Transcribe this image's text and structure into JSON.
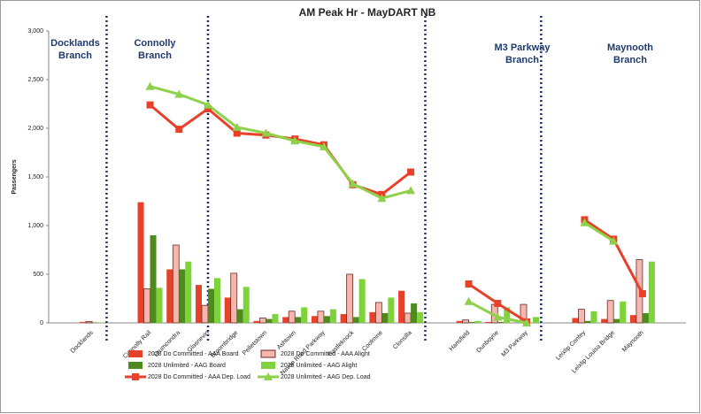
{
  "chart_data": {
    "type": "bar",
    "title": "AM Peak Hr - MayDART NB",
    "y_label": "Passengers",
    "categories": [
      null,
      "Docklands",
      null,
      "Connolly Rail",
      "Drumcondra",
      "Glasnevin",
      "Broombridge",
      "Pelletstown",
      "Ashtown",
      "Navan Road Parkway",
      "Castleknock",
      "Coolmine",
      "Clonsilla",
      null,
      "Hansfield",
      "Dunboyne",
      "M3 Parkway",
      null,
      "Leixlip Confey",
      "Leixlip Louisa Bridge",
      "Maynooth",
      null
    ],
    "series": [
      {
        "name": "2028 Do Committed - AAA Board",
        "type": "bar",
        "color": "#e8412a",
        "values": [
          null,
          10,
          null,
          1240,
          550,
          390,
          260,
          20,
          60,
          70,
          90,
          110,
          330,
          null,
          20,
          10,
          0,
          null,
          50,
          40,
          80,
          null
        ]
      },
      {
        "name": "2028 Do Committed - AAA Alight",
        "type": "bar",
        "color": "#f4b6ae",
        "values": [
          null,
          15,
          null,
          350,
          800,
          180,
          510,
          50,
          120,
          120,
          500,
          210,
          100,
          null,
          30,
          190,
          190,
          null,
          140,
          230,
          650,
          null
        ]
      },
      {
        "name": "2028 Unlimited - AAG Board",
        "type": "bar",
        "color": "#4e8a1e",
        "values": [
          null,
          5,
          null,
          900,
          550,
          350,
          140,
          40,
          60,
          70,
          60,
          100,
          200,
          null,
          10,
          10,
          0,
          null,
          20,
          40,
          100,
          null
        ]
      },
      {
        "name": "2028 Unlimited - AAG Alight",
        "type": "bar",
        "color": "#7ed23a",
        "values": [
          null,
          5,
          null,
          360,
          630,
          460,
          370,
          90,
          160,
          140,
          450,
          260,
          110,
          null,
          20,
          160,
          60,
          null,
          120,
          220,
          630,
          null
        ]
      },
      {
        "name": "2028 Do Committed - AAA Dep. Load",
        "type": "line",
        "marker": "square",
        "color": "#e8412a",
        "values": [
          null,
          null,
          null,
          2240,
          1990,
          2200,
          1950,
          1930,
          1890,
          1830,
          1420,
          1320,
          1550,
          null,
          400,
          200,
          10,
          null,
          1060,
          860,
          300,
          null
        ]
      },
      {
        "name": "2028 Unlimited - AAG Dep. Load",
        "type": "line",
        "marker": "triangle",
        "color": "#8ed14a",
        "values": [
          null,
          null,
          null,
          2430,
          2350,
          2240,
          2010,
          1950,
          1870,
          1810,
          1430,
          1280,
          1360,
          null,
          220,
          60,
          0,
          null,
          1030,
          840,
          null,
          null
        ]
      }
    ],
    "annotations": [
      "Docklands Branch",
      "Connolly Branch",
      "M3 Parkway Branch",
      "Maynooth Branch"
    ],
    "ylim": [
      0,
      3000
    ],
    "yticks": [
      0,
      500,
      {
        "value": 1000,
        "label": "1,000"
      },
      {
        "value": 1500,
        "label": "1,500"
      },
      {
        "value": 2000,
        "label": "2,000"
      },
      {
        "value": 2500,
        "label": "2,500"
      },
      {
        "value": 3000,
        "label": "3,000"
      }
    ]
  }
}
